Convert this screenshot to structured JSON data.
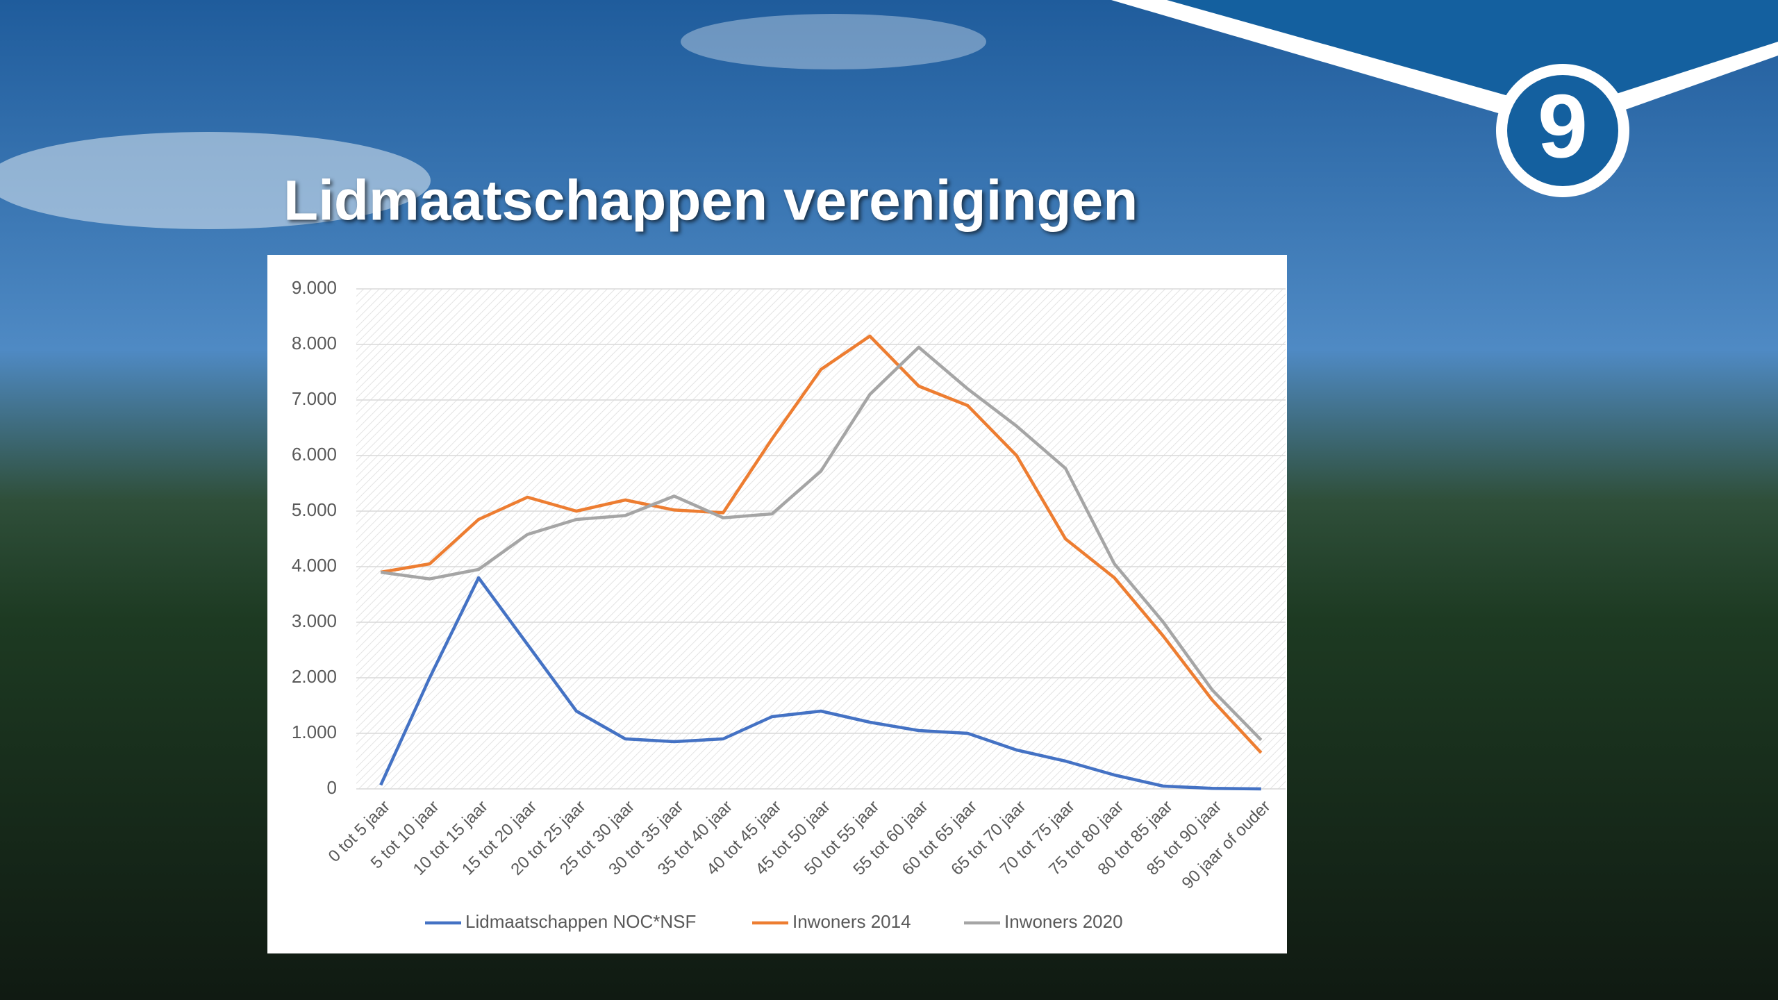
{
  "header": {
    "title": "Lidmaatschappen verenigingen",
    "logo_text": "9"
  },
  "chart_data": {
    "type": "line",
    "categories": [
      "0 tot 5 jaar",
      "5 tot 10 jaar",
      "10 tot 15 jaar",
      "15 tot 20 jaar",
      "20 tot 25 jaar",
      "25 tot 30 jaar",
      "30 tot 35 jaar",
      "35 tot 40 jaar",
      "40 tot 45 jaar",
      "45 tot 50 jaar",
      "50 tot 55 jaar",
      "55 tot 60 jaar",
      "60 tot 65 jaar",
      "65 tot 70 jaar",
      "70 tot 75 jaar",
      "75 tot 80 jaar",
      "80 tot 85 jaar",
      "85 tot 90 jaar",
      "90 jaar of ouder"
    ],
    "series": [
      {
        "name": "Lidmaatschappen NOC*NSF",
        "color": "#4472c4",
        "values": [
          70,
          2000,
          3800,
          2600,
          1400,
          900,
          850,
          900,
          1300,
          1400,
          1200,
          1050,
          1000,
          700,
          500,
          250,
          50,
          10,
          0
        ]
      },
      {
        "name": "Inwoners 2014",
        "color": "#ed7d31",
        "values": [
          3900,
          4050,
          4850,
          5250,
          5000,
          5200,
          5020,
          4970,
          6300,
          7550,
          8150,
          7250,
          6900,
          6000,
          4500,
          3800,
          2750,
          1600,
          650
        ]
      },
      {
        "name": "Inwoners 2020",
        "color": "#a5a5a5",
        "values": [
          3900,
          3780,
          3950,
          4580,
          4850,
          4920,
          5270,
          4880,
          4950,
          5720,
          7100,
          7950,
          7200,
          6530,
          5770,
          4050,
          3000,
          1780,
          880
        ]
      }
    ],
    "ylim": [
      0,
      9000
    ],
    "yticks": [
      0,
      {
        "value": 1000,
        "label": "1.000"
      },
      {
        "value": 2000,
        "label": "2.000"
      },
      {
        "value": 3000,
        "label": "3.000"
      },
      {
        "value": 4000,
        "label": "4.000"
      },
      {
        "value": 5000,
        "label": "5.000"
      },
      {
        "value": 6000,
        "label": "6.000"
      },
      {
        "value": 7000,
        "label": "7.000"
      },
      {
        "value": 8000,
        "label": "8.000"
      },
      {
        "value": 9000,
        "label": "9.000"
      }
    ],
    "grid": true,
    "legend": "bottom"
  }
}
